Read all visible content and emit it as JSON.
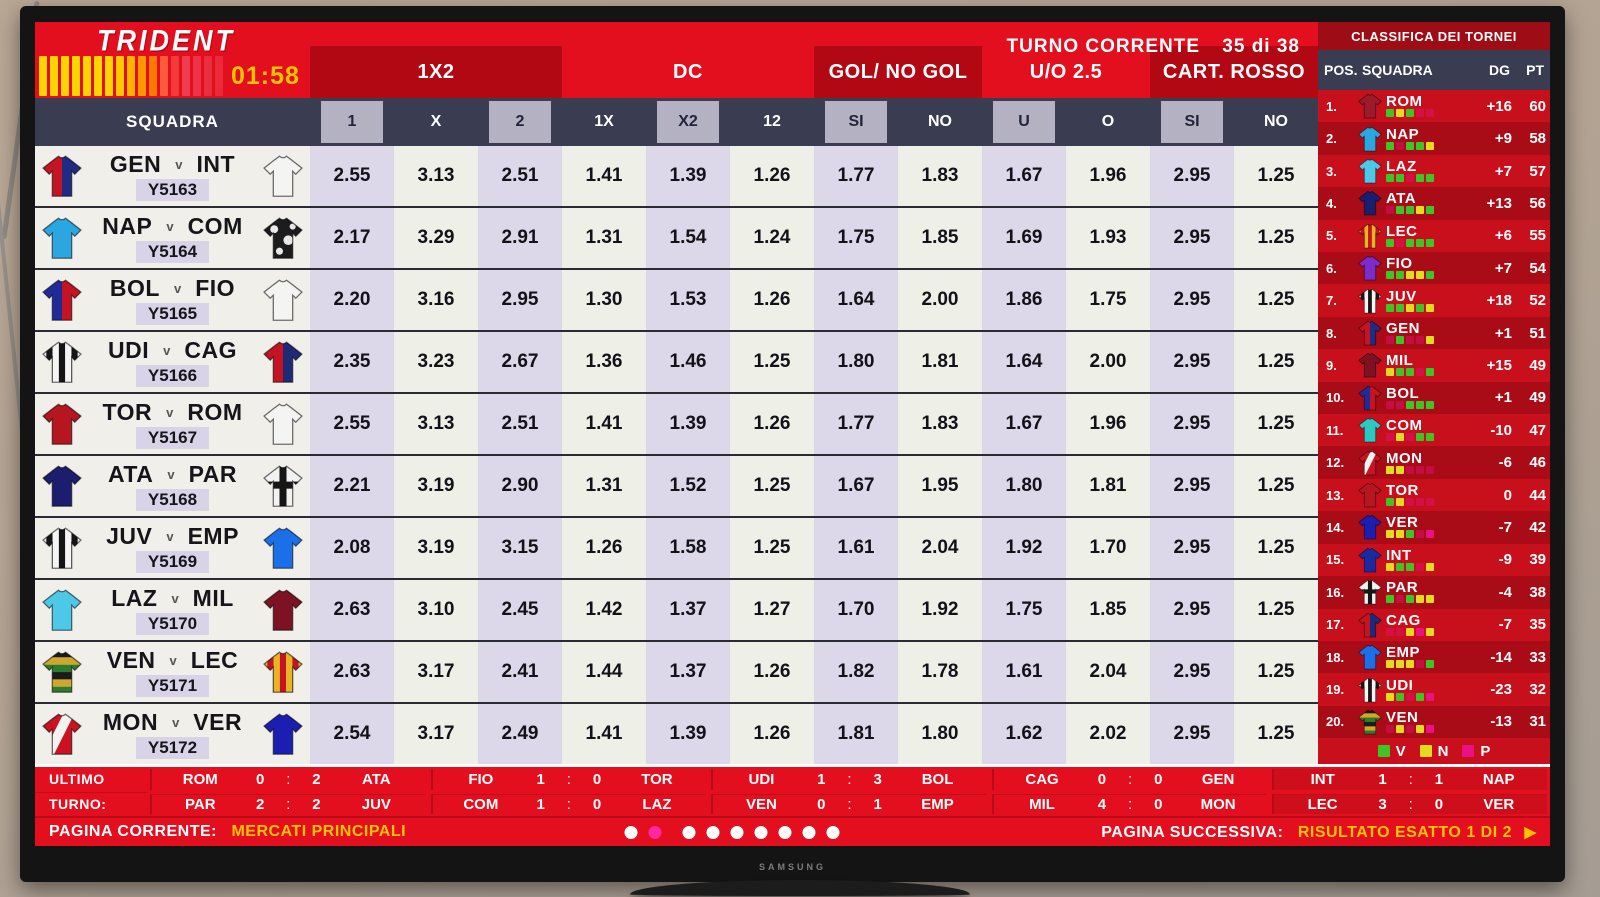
{
  "brand": {
    "logo": "TRIDENT",
    "timer": "01:58"
  },
  "header": {
    "turno_label": "TURNO CORRENTE",
    "turno_value": "35 di 38",
    "squadra_label": "SQUADRA",
    "groups": [
      {
        "label": "1X2",
        "span": 3,
        "dark": true
      },
      {
        "label": "DC",
        "span": 3,
        "dark": false
      },
      {
        "label": "GOL/ NO GOL",
        "span": 2,
        "dark": true
      },
      {
        "label": "U/O 2.5",
        "span": 2,
        "dark": false
      },
      {
        "label": "CART. ROSSO",
        "span": 2,
        "dark": true
      }
    ],
    "columns": [
      "1",
      "X",
      "2",
      "1X",
      "X2",
      "12",
      "SI",
      "NO",
      "U",
      "O",
      "SI",
      "NO"
    ]
  },
  "table": {
    "vs_label": "v",
    "rows": [
      {
        "home": "GEN",
        "away": "INT",
        "code": "Y5163",
        "home_kit": {
          "type": "halved",
          "colors": [
            "#c41322",
            "#202b84"
          ]
        },
        "away_kit": {
          "type": "solid",
          "colors": [
            "#f4f4f2"
          ]
        },
        "odds": [
          "2.55",
          "3.13",
          "2.51",
          "1.41",
          "1.39",
          "1.26",
          "1.77",
          "1.83",
          "1.67",
          "1.96",
          "2.95",
          "1.25"
        ]
      },
      {
        "home": "NAP",
        "away": "COM",
        "code": "Y5164",
        "home_kit": {
          "type": "solid",
          "colors": [
            "#2aa6e0"
          ]
        },
        "away_kit": {
          "type": "camo",
          "colors": [
            "#1c1c1e",
            "#e9e9e9"
          ]
        },
        "odds": [
          "2.17",
          "3.29",
          "2.91",
          "1.31",
          "1.54",
          "1.24",
          "1.75",
          "1.85",
          "1.69",
          "1.93",
          "2.95",
          "1.25"
        ]
      },
      {
        "home": "BOL",
        "away": "FIO",
        "code": "Y5165",
        "home_kit": {
          "type": "halved",
          "colors": [
            "#202b9a",
            "#c41322"
          ]
        },
        "away_kit": {
          "type": "solid",
          "colors": [
            "#f4f4f2"
          ]
        },
        "odds": [
          "2.20",
          "3.16",
          "2.95",
          "1.30",
          "1.53",
          "1.26",
          "1.64",
          "2.00",
          "1.86",
          "1.75",
          "2.95",
          "1.25"
        ]
      },
      {
        "home": "UDI",
        "away": "CAG",
        "code": "Y5166",
        "home_kit": {
          "type": "striped",
          "colors": [
            "#f5f5f5",
            "#151515"
          ]
        },
        "away_kit": {
          "type": "halved",
          "colors": [
            "#c41322",
            "#1c2a78"
          ]
        },
        "odds": [
          "2.35",
          "3.23",
          "2.67",
          "1.36",
          "1.46",
          "1.25",
          "1.80",
          "1.81",
          "1.64",
          "2.00",
          "2.95",
          "1.25"
        ]
      },
      {
        "home": "TOR",
        "away": "ROM",
        "code": "Y5167",
        "home_kit": {
          "type": "solid",
          "colors": [
            "#b5161f"
          ]
        },
        "away_kit": {
          "type": "solid",
          "colors": [
            "#f4f4f2"
          ]
        },
        "odds": [
          "2.55",
          "3.13",
          "2.51",
          "1.41",
          "1.39",
          "1.26",
          "1.77",
          "1.83",
          "1.67",
          "1.96",
          "2.95",
          "1.25"
        ]
      },
      {
        "home": "ATA",
        "away": "PAR",
        "code": "Y5168",
        "home_kit": {
          "type": "solid",
          "colors": [
            "#1b1d6e"
          ]
        },
        "away_kit": {
          "type": "cross",
          "colors": [
            "#f2f2f0",
            "#161616"
          ]
        },
        "odds": [
          "2.21",
          "3.19",
          "2.90",
          "1.31",
          "1.52",
          "1.25",
          "1.67",
          "1.95",
          "1.80",
          "1.81",
          "2.95",
          "1.25"
        ]
      },
      {
        "home": "JUV",
        "away": "EMP",
        "code": "Y5169",
        "home_kit": {
          "type": "striped",
          "colors": [
            "#f5f5f5",
            "#151515"
          ]
        },
        "away_kit": {
          "type": "solid",
          "colors": [
            "#1b6fe8"
          ]
        },
        "odds": [
          "2.08",
          "3.19",
          "3.15",
          "1.26",
          "1.58",
          "1.25",
          "1.61",
          "2.04",
          "1.92",
          "1.70",
          "2.95",
          "1.25"
        ]
      },
      {
        "home": "LAZ",
        "away": "MIL",
        "code": "Y5170",
        "home_kit": {
          "type": "solid",
          "colors": [
            "#4cc9e8"
          ]
        },
        "away_kit": {
          "type": "solid",
          "colors": [
            "#7c1222"
          ]
        },
        "odds": [
          "2.63",
          "3.10",
          "2.45",
          "1.42",
          "1.37",
          "1.27",
          "1.70",
          "1.92",
          "1.75",
          "1.85",
          "2.95",
          "1.25"
        ]
      },
      {
        "home": "VEN",
        "away": "LEC",
        "code": "Y5171",
        "home_kit": {
          "type": "hooped",
          "colors": [
            "#1b1b1b",
            "#cfa72b",
            "#2d7c2d"
          ]
        },
        "away_kit": {
          "type": "striped",
          "colors": [
            "#e8b41f",
            "#c41322"
          ]
        },
        "odds": [
          "2.63",
          "3.17",
          "2.41",
          "1.44",
          "1.37",
          "1.26",
          "1.82",
          "1.78",
          "1.61",
          "2.04",
          "2.95",
          "1.25"
        ]
      },
      {
        "home": "MON",
        "away": "VER",
        "code": "Y5172",
        "home_kit": {
          "type": "sash",
          "colors": [
            "#ca1222",
            "#f2f2f0"
          ]
        },
        "away_kit": {
          "type": "solid",
          "colors": [
            "#1c1eb2"
          ]
        },
        "odds": [
          "2.54",
          "3.17",
          "2.49",
          "1.41",
          "1.39",
          "1.26",
          "1.81",
          "1.80",
          "1.62",
          "2.02",
          "2.95",
          "1.25"
        ]
      }
    ]
  },
  "standings": {
    "title": "CLASSIFICA DEI TORNEI",
    "columns": [
      "POS.",
      "SQUADRA",
      "DG",
      "PT"
    ],
    "rows": [
      {
        "pos": "1.",
        "team": "ROM",
        "dg": "+16",
        "pt": "60",
        "kit": {
          "type": "solid",
          "colors": [
            "#9c1a2a"
          ]
        },
        "form": [
          "V",
          "N",
          "V",
          "p",
          "p"
        ]
      },
      {
        "pos": "2.",
        "team": "NAP",
        "dg": "+9",
        "pt": "58",
        "kit": {
          "type": "solid",
          "colors": [
            "#2aa6e0"
          ]
        },
        "form": [
          "V",
          "p",
          "V",
          "V",
          "N"
        ]
      },
      {
        "pos": "3.",
        "team": "LAZ",
        "dg": "+7",
        "pt": "57",
        "kit": {
          "type": "solid",
          "colors": [
            "#4cc9e8"
          ]
        },
        "form": [
          "V",
          "V",
          "p",
          "V",
          "V"
        ]
      },
      {
        "pos": "4.",
        "team": "ATA",
        "dg": "+13",
        "pt": "56",
        "kit": {
          "type": "solid",
          "colors": [
            "#1b1d6e"
          ]
        },
        "form": [
          "p",
          "V",
          "V",
          "N",
          "V"
        ]
      },
      {
        "pos": "5.",
        "team": "LEC",
        "dg": "+6",
        "pt": "55",
        "kit": {
          "type": "striped",
          "colors": [
            "#e8b41f",
            "#c41322"
          ]
        },
        "form": [
          "V",
          "p",
          "V",
          "V",
          "V"
        ]
      },
      {
        "pos": "6.",
        "team": "FIO",
        "dg": "+7",
        "pt": "54",
        "kit": {
          "type": "solid",
          "colors": [
            "#7b2cc9"
          ]
        },
        "form": [
          "V",
          "V",
          "N",
          "N",
          "V"
        ]
      },
      {
        "pos": "7.",
        "team": "JUV",
        "dg": "+18",
        "pt": "52",
        "kit": {
          "type": "striped",
          "colors": [
            "#f5f5f5",
            "#151515"
          ]
        },
        "form": [
          "V",
          "V",
          "N",
          "V",
          "N"
        ]
      },
      {
        "pos": "8.",
        "team": "GEN",
        "dg": "+1",
        "pt": "51",
        "kit": {
          "type": "halved",
          "colors": [
            "#c41322",
            "#202b84"
          ]
        },
        "form": [
          "p",
          "V",
          "p",
          "p",
          "N"
        ]
      },
      {
        "pos": "9.",
        "team": "MIL",
        "dg": "+15",
        "pt": "49",
        "kit": {
          "type": "solid",
          "colors": [
            "#7c1222"
          ]
        },
        "form": [
          "N",
          "V",
          "V",
          "p",
          "V"
        ]
      },
      {
        "pos": "10.",
        "team": "BOL",
        "dg": "+1",
        "pt": "49",
        "kit": {
          "type": "halved",
          "colors": [
            "#202b9a",
            "#c41322"
          ]
        },
        "form": [
          "p",
          "p",
          "V",
          "V",
          "V"
        ]
      },
      {
        "pos": "11.",
        "team": "COM",
        "dg": "-10",
        "pt": "47",
        "kit": {
          "type": "solid",
          "colors": [
            "#2cc9c2"
          ]
        },
        "form": [
          "p",
          "N",
          "p",
          "V",
          "V"
        ]
      },
      {
        "pos": "12.",
        "team": "MON",
        "dg": "-6",
        "pt": "46",
        "kit": {
          "type": "sash",
          "colors": [
            "#ca1222",
            "#f2f2f0"
          ]
        },
        "form": [
          "N",
          "N",
          "p",
          "p",
          "p"
        ]
      },
      {
        "pos": "13.",
        "team": "TOR",
        "dg": "0",
        "pt": "44",
        "kit": {
          "type": "solid",
          "colors": [
            "#b5161f"
          ]
        },
        "form": [
          "V",
          "N",
          "p",
          "p",
          "p"
        ]
      },
      {
        "pos": "14.",
        "team": "VER",
        "dg": "-7",
        "pt": "42",
        "kit": {
          "type": "solid",
          "colors": [
            "#1c1eb2"
          ]
        },
        "form": [
          "N",
          "N",
          "V",
          "p",
          "P"
        ]
      },
      {
        "pos": "15.",
        "team": "INT",
        "dg": "-9",
        "pt": "39",
        "kit": {
          "type": "solid",
          "colors": [
            "#1c2aa2"
          ]
        },
        "form": [
          "N",
          "V",
          "V",
          "p",
          "N"
        ]
      },
      {
        "pos": "16.",
        "team": "PAR",
        "dg": "-4",
        "pt": "38",
        "kit": {
          "type": "cross",
          "colors": [
            "#f2f2f0",
            "#161616"
          ]
        },
        "form": [
          "V",
          "p",
          "V",
          "N",
          "N"
        ]
      },
      {
        "pos": "17.",
        "team": "CAG",
        "dg": "-7",
        "pt": "35",
        "kit": {
          "type": "halved",
          "colors": [
            "#c41322",
            "#1c2a78"
          ]
        },
        "form": [
          "p",
          "p",
          "N",
          "P",
          "N"
        ]
      },
      {
        "pos": "18.",
        "team": "EMP",
        "dg": "-14",
        "pt": "33",
        "kit": {
          "type": "solid",
          "colors": [
            "#1b6fe8"
          ]
        },
        "form": [
          "N",
          "N",
          "N",
          "p",
          "V"
        ]
      },
      {
        "pos": "19.",
        "team": "UDI",
        "dg": "-23",
        "pt": "32",
        "kit": {
          "type": "striped",
          "colors": [
            "#f5f5f5",
            "#151515"
          ]
        },
        "form": [
          "N",
          "V",
          "p",
          "V",
          "P"
        ]
      },
      {
        "pos": "20.",
        "team": "VEN",
        "dg": "-13",
        "pt": "31",
        "kit": {
          "type": "hooped",
          "colors": [
            "#1b1b1b",
            "#cfa72b",
            "#2d7c2d"
          ]
        },
        "form": [
          "p",
          "N",
          "p",
          "N",
          "P"
        ]
      }
    ],
    "legend": [
      {
        "label": "V",
        "color": "#3fc426"
      },
      {
        "label": "N",
        "color": "#e3dc1e"
      },
      {
        "label": "P",
        "color": "#e81284"
      }
    ]
  },
  "results": {
    "label_top": "ULTIMO",
    "label_bottom": "TURNO:",
    "rows": [
      [
        {
          "home": "ROM",
          "hs": "0",
          "sep": ":",
          "as": "2",
          "away": "ATA"
        },
        {
          "home": "FIO",
          "hs": "1",
          "sep": ":",
          "as": "0",
          "away": "TOR"
        },
        {
          "home": "UDI",
          "hs": "1",
          "sep": ":",
          "as": "3",
          "away": "BOL"
        },
        {
          "home": "CAG",
          "hs": "0",
          "sep": ":",
          "as": "0",
          "away": "GEN"
        },
        {
          "home": "INT",
          "hs": "1",
          "sep": ":",
          "as": "1",
          "away": "NAP"
        }
      ],
      [
        {
          "home": "PAR",
          "hs": "2",
          "sep": ":",
          "as": "2",
          "away": "JUV"
        },
        {
          "home": "COM",
          "hs": "1",
          "sep": ":",
          "as": "0",
          "away": "LAZ"
        },
        {
          "home": "VEN",
          "hs": "0",
          "sep": ":",
          "as": "1",
          "away": "EMP"
        },
        {
          "home": "MIL",
          "hs": "4",
          "sep": ":",
          "as": "0",
          "away": "MON"
        },
        {
          "home": "LEC",
          "hs": "3",
          "sep": ":",
          "as": "0",
          "away": "VER"
        }
      ]
    ]
  },
  "footer": {
    "current_label": "PAGINA CORRENTE:",
    "current_value": "MERCATI PRINCIPALI",
    "dots": [
      "on",
      "active",
      "on",
      "on",
      "on",
      "on",
      "on",
      "on",
      "on"
    ],
    "next_label": "PAGINA SUCCESSIVA:",
    "next_value": "RISULTATO ESATTO 1 DI 2",
    "next_arrow": "▶"
  },
  "tv": {
    "brand": "SAMSUNG"
  },
  "colors": {
    "screen_red": "#e30f1e",
    "dark_red_box": "#b20813",
    "standings_red": "#c8101d",
    "standings_alt_red": "#a90c17",
    "navy_header": "#3a3c52",
    "light_header_cell": "#b3b1c2",
    "lavender_col": "#dcd7e9",
    "pale_col": "#eef0e8",
    "timer_yellow": "#ffc400",
    "active_dot_pink": "#ff28a0"
  }
}
